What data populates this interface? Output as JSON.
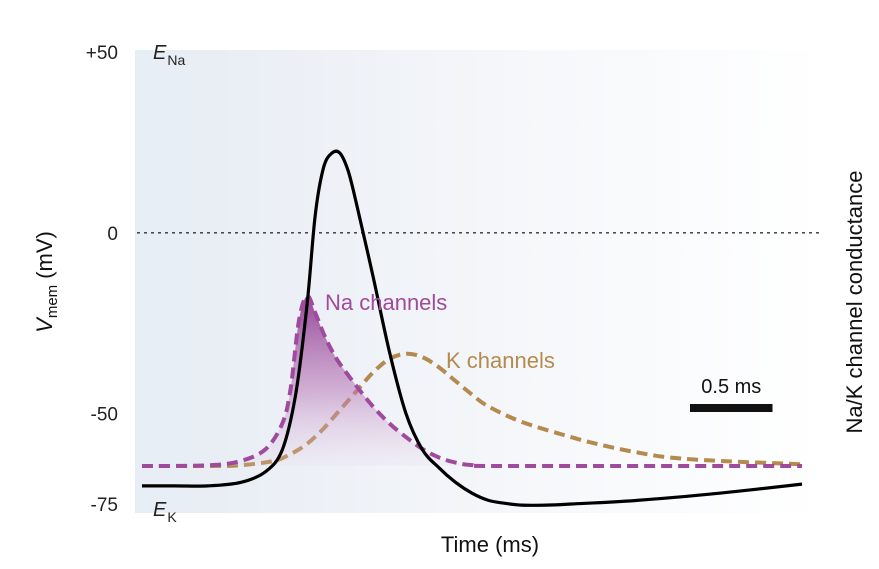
{
  "chart_data": {
    "type": "line",
    "title": "",
    "xlabel": "Time (ms)",
    "ylabel_main": "V",
    "ylabel_sub": "mem",
    "ylabel_unit": "(mV)",
    "y2label": "Na/K channel conductance",
    "ylim": [
      -75,
      50
    ],
    "xlim": [
      0,
      4.0
    ],
    "yticks": [
      {
        "value": 50,
        "label": "+50"
      },
      {
        "value": 0,
        "label": "0"
      },
      {
        "value": -50,
        "label": "-50"
      },
      {
        "value": -75,
        "label": "-75"
      }
    ],
    "reversal_potentials": [
      {
        "letter": "E",
        "sub": "Na",
        "value": 50
      },
      {
        "letter": "E",
        "sub": "K",
        "value": -75
      }
    ],
    "reference_line": {
      "value": 0,
      "style": "dotted"
    },
    "scale_bar": {
      "label": "0.5 ms",
      "duration": 0.5
    },
    "series": [
      {
        "name": "Membrane potential",
        "color": "#000000",
        "style": "solid",
        "axis": "voltage",
        "x": [
          0,
          0.2,
          0.4,
          0.6,
          0.75,
          0.85,
          0.93,
          1.0,
          1.05,
          1.1,
          1.15,
          1.2,
          1.25,
          1.3,
          1.4,
          1.5,
          1.6,
          1.7,
          1.8,
          1.9,
          2.0,
          2.1,
          2.2,
          2.3,
          2.45,
          2.6,
          3.0,
          3.5,
          4.0
        ],
        "y": [
          -70,
          -70,
          -70,
          -69,
          -66,
          -60,
          -45,
          -20,
          5,
          18,
          22,
          22,
          17,
          8,
          -12,
          -33,
          -50,
          -60,
          -65,
          -69,
          -72,
          -74,
          -74.8,
          -75.3,
          -75.3,
          -75,
          -74,
          -72,
          -69.5
        ]
      },
      {
        "name": "Na channels",
        "label": "Na channels",
        "color": "#a04a9e",
        "style": "dashed",
        "axis": "conductance",
        "fill": true,
        "x": [
          0,
          0.4,
          0.6,
          0.75,
          0.85,
          0.9,
          0.95,
          1.0,
          1.05,
          1.1,
          1.15,
          1.2,
          1.3,
          1.4,
          1.5,
          1.6,
          1.7,
          1.8,
          1.9,
          2.0,
          2.2,
          4.0
        ],
        "y": [
          0,
          0.004,
          0.03,
          0.1,
          0.25,
          0.45,
          0.85,
          1.0,
          0.9,
          0.78,
          0.68,
          0.6,
          0.47,
          0.35,
          0.25,
          0.17,
          0.1,
          0.05,
          0.02,
          0.005,
          0,
          0
        ]
      },
      {
        "name": "K channels",
        "label": "K channels",
        "color": "#b58a4e",
        "style": "dashed",
        "axis": "conductance",
        "fill": false,
        "x": [
          0,
          0.4,
          0.6,
          0.8,
          0.9,
          1.0,
          1.1,
          1.2,
          1.3,
          1.4,
          1.5,
          1.6,
          1.7,
          1.8,
          1.9,
          2.0,
          2.1,
          2.3,
          2.6,
          2.8,
          3.0,
          3.2,
          3.5,
          4.0
        ],
        "y": [
          0,
          0,
          0.005,
          0.03,
          0.07,
          0.13,
          0.22,
          0.33,
          0.44,
          0.55,
          0.63,
          0.66,
          0.64,
          0.58,
          0.5,
          0.42,
          0.35,
          0.26,
          0.17,
          0.12,
          0.08,
          0.05,
          0.03,
          0.01
        ]
      }
    ]
  }
}
